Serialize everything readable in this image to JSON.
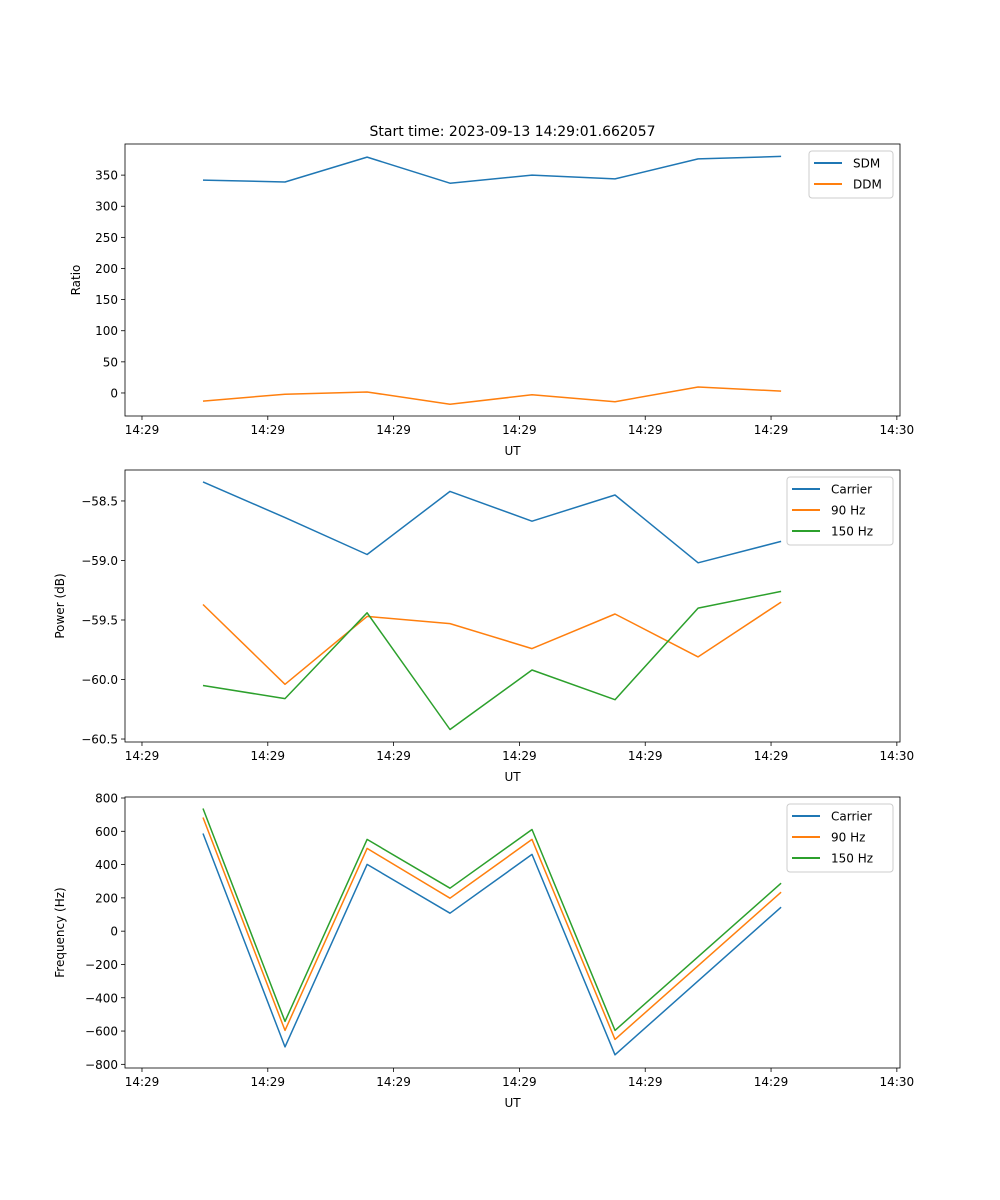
{
  "title": "Start time: 2023-09-13 14:29:01.662057",
  "colors": {
    "blue": "#1f77b4",
    "orange": "#ff7f0e",
    "green": "#2ca02c"
  },
  "chart_data": [
    {
      "type": "line",
      "title": "Start time: 2023-09-13 14:29:01.662057",
      "xlabel": "UT",
      "ylabel": "Ratio",
      "x_unit": "seconds after 14:29:00",
      "xlim": [
        -1.35,
        60.25
      ],
      "xticks": [
        0,
        10,
        20,
        30,
        40,
        50,
        60
      ],
      "xtick_labels": [
        "14:29",
        "14:29",
        "14:29",
        "14:29",
        "14:29",
        "14:29",
        "14:30"
      ],
      "ylim": [
        -37,
        400
      ],
      "yticks": [
        0,
        50,
        100,
        150,
        200,
        250,
        300,
        350
      ],
      "ytick_labels": [
        "0",
        "50",
        "100",
        "150",
        "200",
        "250",
        "300",
        "350"
      ],
      "legend": "top-right",
      "x": [
        4.85,
        11.37,
        17.89,
        24.48,
        31.0,
        37.6,
        44.2,
        50.8
      ],
      "series": [
        {
          "name": "SDM",
          "color": "#1f77b4",
          "values": [
            342,
            339,
            379,
            337,
            350,
            344,
            376,
            380
          ]
        },
        {
          "name": "DDM",
          "color": "#ff7f0e",
          "values": [
            -13,
            -2,
            1.5,
            -18,
            -3,
            -14,
            9.6,
            3
          ]
        }
      ]
    },
    {
      "type": "line",
      "title": "",
      "xlabel": "UT",
      "ylabel": "Power (dB)",
      "x_unit": "seconds after 14:29:00",
      "xlim": [
        -1.35,
        60.25
      ],
      "xticks": [
        0,
        10,
        20,
        30,
        40,
        50,
        60
      ],
      "xtick_labels": [
        "14:29",
        "14:29",
        "14:29",
        "14:29",
        "14:29",
        "14:29",
        "14:30"
      ],
      "ylim": [
        -60.525,
        -58.24
      ],
      "yticks": [
        -60.5,
        -60.0,
        -59.5,
        -59.0,
        -58.5
      ],
      "ytick_labels": [
        "−60.5",
        "−60.0",
        "−59.5",
        "−59.0",
        "−58.5"
      ],
      "legend": "top-right",
      "x": [
        4.85,
        11.37,
        17.89,
        24.48,
        31.0,
        37.6,
        44.2,
        50.8
      ],
      "series": [
        {
          "name": "Carrier",
          "color": "#1f77b4",
          "values": [
            -58.34,
            -58.64,
            -58.95,
            -58.42,
            -58.67,
            -58.45,
            -59.02,
            -58.84
          ]
        },
        {
          "name": "90 Hz",
          "color": "#ff7f0e",
          "values": [
            -59.37,
            -60.04,
            -59.47,
            -59.53,
            -59.74,
            -59.45,
            -59.81,
            -59.35
          ]
        },
        {
          "name": "150 Hz",
          "color": "#2ca02c",
          "values": [
            -60.05,
            -60.16,
            -59.44,
            -60.42,
            -59.92,
            -60.17,
            -59.4,
            -59.26
          ]
        }
      ]
    },
    {
      "type": "line",
      "title": "",
      "xlabel": "UT",
      "ylabel": "Frequency (Hz)",
      "x_unit": "seconds after 14:29:00",
      "xlim": [
        -1.35,
        60.25
      ],
      "xticks": [
        0,
        10,
        20,
        30,
        40,
        50,
        60
      ],
      "xtick_labels": [
        "14:29",
        "14:29",
        "14:29",
        "14:29",
        "14:29",
        "14:29",
        "14:30"
      ],
      "ylim": [
        -822,
        806
      ],
      "yticks": [
        -800,
        -600,
        -400,
        -200,
        0,
        200,
        400,
        600,
        800
      ],
      "ytick_labels": [
        "−800",
        "−600",
        "−400",
        "−200",
        "0",
        "200",
        "400",
        "600",
        "800"
      ],
      "legend": "top-right",
      "x": [
        4.85,
        11.37,
        17.89,
        24.48,
        31.0,
        37.6,
        50.8
      ],
      "series": [
        {
          "name": "Carrier",
          "color": "#1f77b4",
          "values": [
            587,
            -695,
            401,
            108,
            461,
            -743,
            144
          ]
        },
        {
          "name": "90 Hz",
          "color": "#ff7f0e",
          "values": [
            683,
            -596,
            497,
            198,
            551,
            -650,
            234
          ]
        },
        {
          "name": "150 Hz",
          "color": "#2ca02c",
          "values": [
            737,
            -542,
            551,
            258,
            611,
            -596,
            288
          ]
        }
      ]
    }
  ]
}
